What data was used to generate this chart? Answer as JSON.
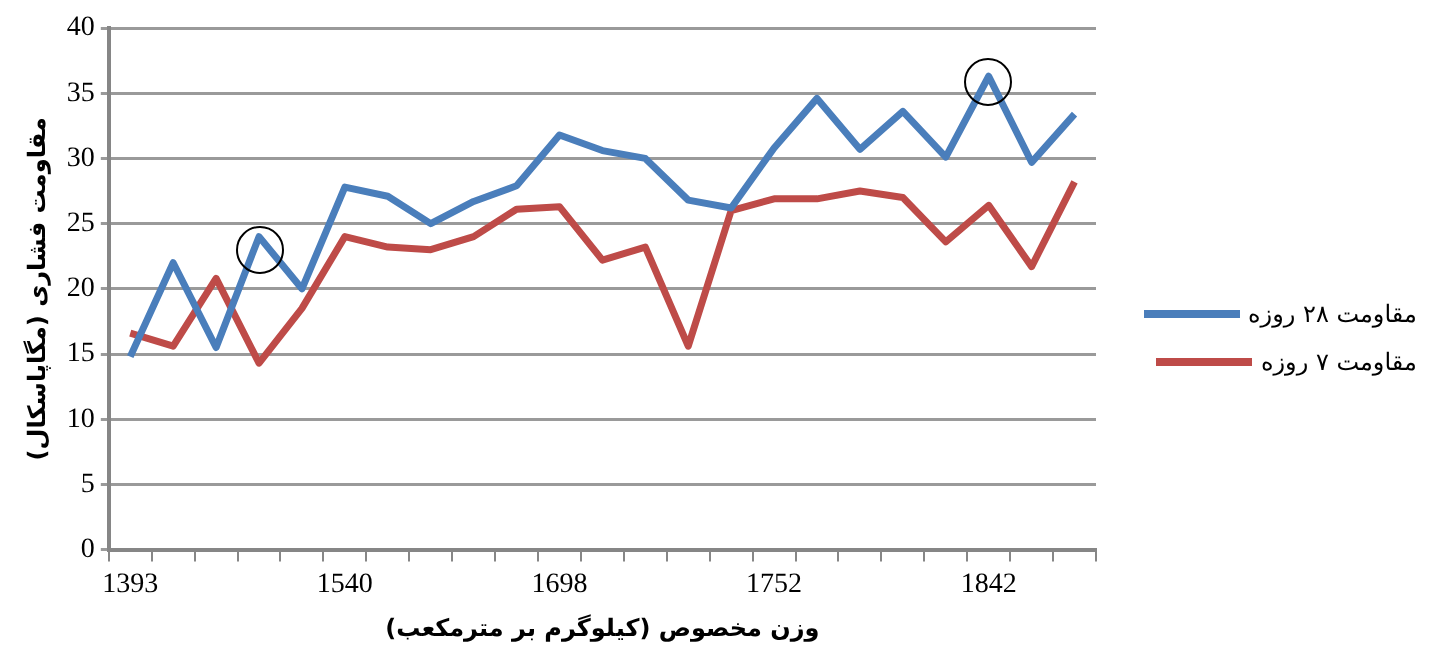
{
  "chart_data": {
    "type": "line",
    "xlabel": "وزن مخصوص (کیلوگرم بر مترمکعب)",
    "ylabel": "مقاومت فشاری (مگاپاسکال)",
    "categories": [
      "1393",
      null,
      null,
      null,
      null,
      "1540",
      null,
      null,
      null,
      null,
      "1698",
      null,
      null,
      null,
      null,
      "1752",
      null,
      null,
      null,
      null,
      "1842",
      null,
      null
    ],
    "series": [
      {
        "name": "مقاومت ۲۸ روزه",
        "color": "#4a7ebb",
        "values": [
          14.8,
          22,
          15.5,
          24,
          20,
          27.8,
          27.1,
          25,
          26.7,
          27.9,
          31.8,
          30.6,
          30,
          26.8,
          26.2,
          30.8,
          34.6,
          30.7,
          33.6,
          30.1,
          36.3,
          29.7,
          33.4
        ]
      },
      {
        "name": "مقاومت ۷ روزه",
        "color": "#be4b48",
        "values": [
          16.6,
          15.6,
          20.8,
          14.3,
          18.5,
          24,
          23.2,
          23,
          24,
          26.1,
          26.3,
          22.2,
          23.2,
          15.6,
          26,
          26.9,
          26.9,
          27.5,
          27,
          23.6,
          26.4,
          21.7,
          28.2
        ]
      }
    ],
    "ylim": [
      0,
      40
    ],
    "yticks": [
      0,
      5,
      10,
      15,
      20,
      25,
      30,
      35,
      40
    ],
    "grid": "y",
    "legend": "right",
    "marker": "none",
    "line_style": "solid"
  }
}
